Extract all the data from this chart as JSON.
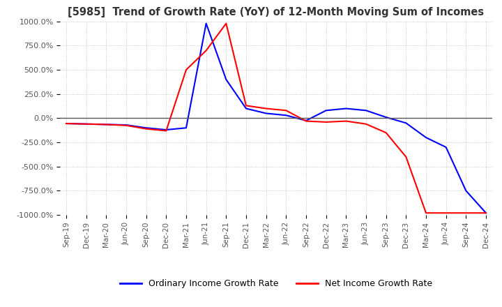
{
  "title": "[5985]  Trend of Growth Rate (YoY) of 12-Month Moving Sum of Incomes",
  "ylim": [
    -1000,
    1000
  ],
  "yticks": [
    -1000,
    -750,
    -500,
    -250,
    0,
    250,
    500,
    750,
    1000
  ],
  "ytick_labels": [
    "-1000.0%",
    "-750.0%",
    "-500.0%",
    "-250.0%",
    "0.0%",
    "250.0%",
    "500.0%",
    "750.0%",
    "1000.0%"
  ],
  "legend": [
    "Ordinary Income Growth Rate",
    "Net Income Growth Rate"
  ],
  "legend_colors": [
    "#0000ff",
    "#ff0000"
  ],
  "bg_color": "#ffffff",
  "grid_color": "#bbbbbb",
  "x_labels": [
    "Sep-19",
    "Dec-19",
    "Mar-20",
    "Jun-20",
    "Sep-20",
    "Dec-20",
    "Mar-21",
    "Jun-21",
    "Sep-21",
    "Dec-21",
    "Mar-22",
    "Jun-22",
    "Sep-22",
    "Dec-22",
    "Mar-23",
    "Jun-23",
    "Sep-23",
    "Dec-23",
    "Mar-24",
    "Jun-24",
    "Sep-24",
    "Dec-24"
  ],
  "ordinary_income": [
    -55,
    -60,
    -65,
    -70,
    -100,
    -120,
    -100,
    980,
    400,
    100,
    50,
    30,
    -25,
    80,
    100,
    80,
    10,
    -50,
    -200,
    -300,
    -750,
    -980
  ],
  "net_income": [
    -55,
    -60,
    -65,
    -75,
    -110,
    -130,
    500,
    700,
    980,
    130,
    100,
    80,
    -30,
    -40,
    -30,
    -60,
    -150,
    -400,
    -980,
    -980,
    -980,
    -980
  ]
}
